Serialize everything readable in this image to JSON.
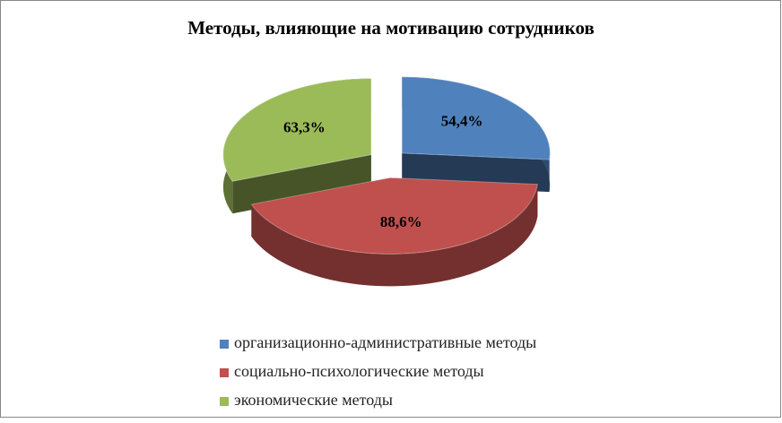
{
  "chart_data": {
    "type": "pie",
    "title": "Методы, влияющие на мотивацию сотрудников",
    "categories": [
      "организационно-административные методы",
      "социально-психологические методы",
      "экономические методы"
    ],
    "values": [
      54.4,
      88.6,
      63.3
    ],
    "value_labels": [
      "54,4%",
      "88,6%",
      "63,3%"
    ],
    "colors": [
      "#4f81bd",
      "#c0504d",
      "#9bbb59"
    ]
  }
}
